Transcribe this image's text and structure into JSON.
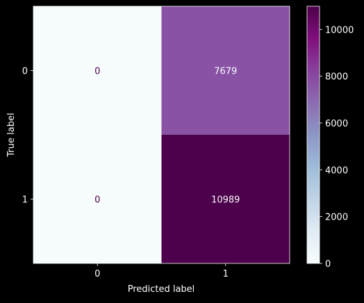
{
  "chart_data": {
    "type": "heatmap",
    "title": "",
    "xlabel": "Predicted label",
    "ylabel": "True label",
    "x_categories": [
      "0",
      "1"
    ],
    "y_categories": [
      "0",
      "1"
    ],
    "values": [
      [
        0,
        7679
      ],
      [
        0,
        10989
      ]
    ],
    "colormap": "BuPu",
    "colorbar": {
      "min": 0,
      "max": 10989,
      "ticks": [
        0,
        2000,
        4000,
        6000,
        8000,
        10000
      ],
      "tick_labels": [
        "0",
        "2000",
        "4000",
        "6000",
        "8000",
        "10000"
      ]
    },
    "colors": {
      "background": "#000000",
      "text": "#ffffff",
      "low": "#f7fcfd",
      "high": "#4d004b",
      "annotation_on_light": "#4d004b",
      "annotation_on_dark": "#f7fcfd"
    },
    "grid": false
  }
}
